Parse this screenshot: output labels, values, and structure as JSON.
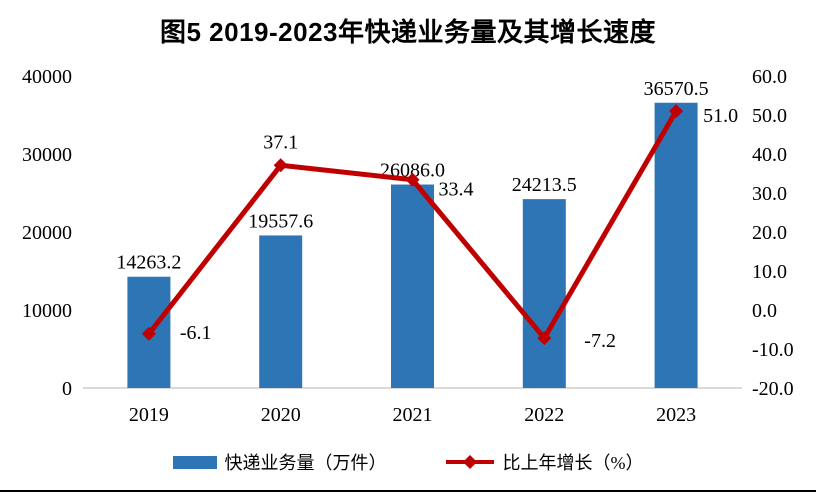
{
  "chart_data": {
    "type": "bar",
    "subtype": "combo-bar-line-dual-axis",
    "title": "图5  2019-2023年快递业务量及其增长速度",
    "categories": [
      "2019",
      "2020",
      "2021",
      "2022",
      "2023"
    ],
    "series": [
      {
        "name": "快递业务量（万件）",
        "type": "bar",
        "axis": "left",
        "color": "#2E75B6",
        "values": [
          14263.2,
          19557.6,
          26086.0,
          24213.5,
          36570.5
        ],
        "labels": [
          "14263.2",
          "19557.6",
          "26086.0",
          "24213.5",
          "36570.5"
        ]
      },
      {
        "name": "比上年增长（%）",
        "type": "line",
        "axis": "right",
        "color": "#C00000",
        "marker": "diamond",
        "values": [
          -6.1,
          37.1,
          33.4,
          -7.2,
          51.0
        ],
        "labels": [
          "-6.1",
          "37.1",
          "33.4",
          "-7.2",
          "51.0"
        ],
        "label_anchors": [
          "start",
          "middle",
          "start",
          "start",
          "start"
        ],
        "label_offsets": [
          [
            31,
            5
          ],
          [
            0,
            -17
          ],
          [
            26,
            16
          ],
          [
            40,
            9
          ],
          [
            27,
            11
          ]
        ]
      }
    ],
    "left_axis": {
      "min": 0,
      "max": 40000,
      "step": 10000,
      "ticks": [
        "0",
        "10000",
        "20000",
        "30000",
        "40000"
      ]
    },
    "right_axis": {
      "min": -20,
      "max": 60,
      "step": 10,
      "ticks": [
        "-20.0",
        "-10.0",
        "0.0",
        "10.0",
        "20.0",
        "30.0",
        "40.0",
        "50.0",
        "60.0"
      ]
    },
    "gridlines": false,
    "axis_line_color": "#D9D9D9",
    "legend_position": "bottom"
  }
}
